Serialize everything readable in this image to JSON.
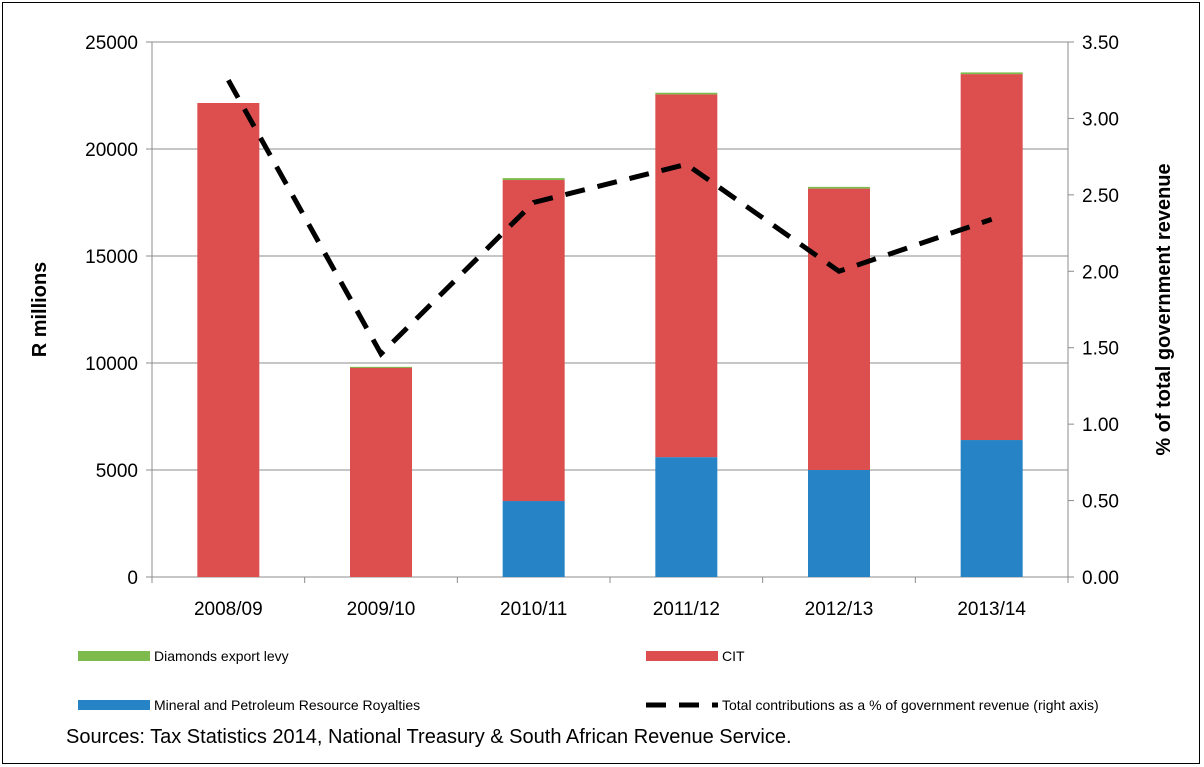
{
  "chart_data": {
    "type": "bar",
    "stacked": true,
    "categories": [
      "2008/09",
      "2009/10",
      "2010/11",
      "2011/12",
      "2012/13",
      "2013/14"
    ],
    "series": [
      {
        "name": "Mineral and Petroleum Resource Royalties",
        "type": "bar",
        "axis": "left",
        "color": "#2683c6",
        "values": [
          0,
          0,
          3550,
          5600,
          5000,
          6400
        ]
      },
      {
        "name": "CIT",
        "type": "bar",
        "axis": "left",
        "color": "#dd4f4f",
        "values": [
          22150,
          9800,
          15000,
          16950,
          13150,
          17100
        ]
      },
      {
        "name": "Diamonds export levy",
        "type": "bar",
        "axis": "left",
        "color": "#7dbb4f",
        "values": [
          0,
          20,
          90,
          80,
          80,
          80
        ]
      },
      {
        "name": "Total contributions as a % of government revenue (right axis)",
        "type": "line",
        "axis": "right",
        "dash": true,
        "color": "#000000",
        "values": [
          3.25,
          1.46,
          2.45,
          2.7,
          2.0,
          2.34
        ]
      }
    ],
    "ylabel": "R millions",
    "y2label": "% of total government revenue",
    "ylim": [
      0,
      25000
    ],
    "y2lim": [
      0,
      3.5
    ],
    "yticks": [
      "0",
      "5000",
      "10000",
      "15000",
      "20000",
      "25000"
    ],
    "y2ticks": [
      "0.00",
      "0.50",
      "1.00",
      "1.50",
      "2.00",
      "2.50",
      "3.00",
      "3.50"
    ],
    "grid": true,
    "legend_position": "bottom"
  },
  "legend": [
    {
      "label": "Diamonds export levy",
      "kind": "bar",
      "color": "#7dbb4f"
    },
    {
      "label": "CIT",
      "kind": "bar",
      "color": "#dd4f4f"
    },
    {
      "label": "Mineral and Petroleum Resource Royalties",
      "kind": "bar",
      "color": "#2683c6"
    },
    {
      "label": "Total contributions as a % of government revenue (right axis)",
      "kind": "line-dashed",
      "color": "#000000"
    }
  ],
  "source_text": "Sources: Tax Statistics 2014, National Treasury & South African Revenue Service."
}
